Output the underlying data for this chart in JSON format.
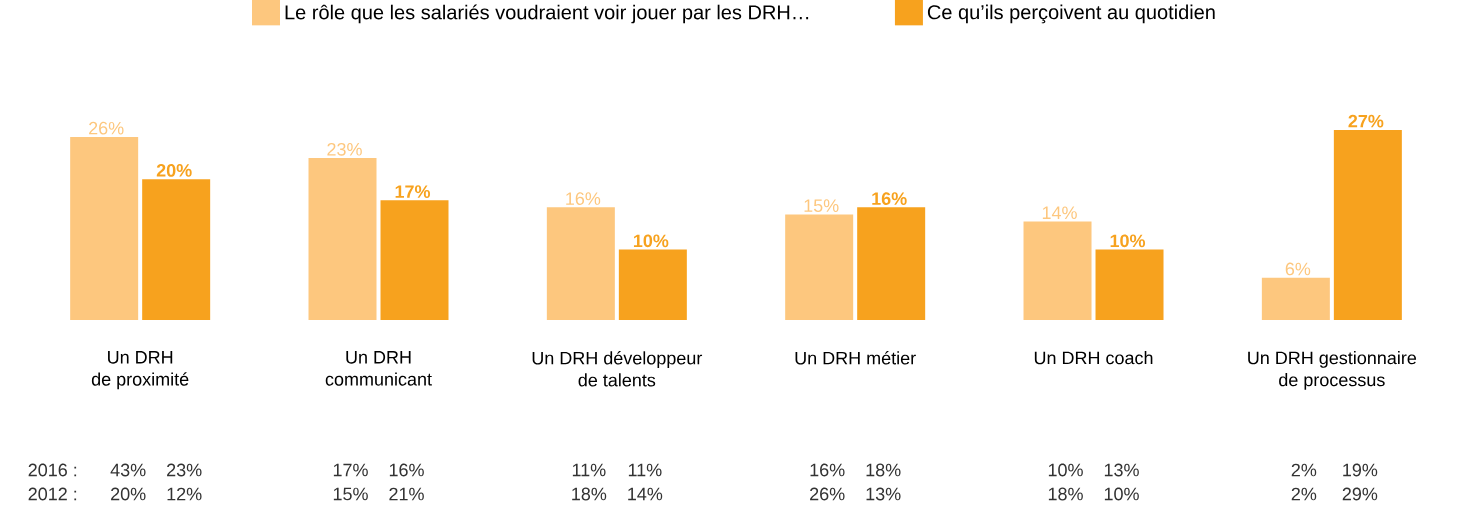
{
  "chart_data": {
    "type": "bar",
    "categories": [
      "Un DRH\nde proximité",
      "Un DRH\ncommunicant",
      "Un DRH développeur\nde talents",
      "Un DRH métier",
      "Un DRH coach",
      "Un DRH gestionnaire\nde processus"
    ],
    "series": [
      {
        "name": "Le rôle que les salariés voudraient voir jouer par les DRH…",
        "color": "#fdc77e",
        "values": [
          26,
          23,
          16,
          15,
          14,
          6
        ],
        "value_labels": [
          "26%",
          "23%",
          "16%",
          "15%",
          "14%",
          "6%"
        ]
      },
      {
        "name": "Ce qu’ils perçoivent au quotidien",
        "color": "#f7a21e",
        "values": [
          20,
          17,
          10,
          16,
          10,
          27
        ],
        "value_labels": [
          "20%",
          "17%",
          "10%",
          "16%",
          "10%",
          "27%"
        ]
      }
    ],
    "legend": "top",
    "tick_labels": "x",
    "annotations": [
      "2016 :",
      "2012 :",
      "43%",
      "23%",
      "20%",
      "12%",
      "17%",
      "16%",
      "15%",
      "21%",
      "11%",
      "11%",
      "18%",
      "14%",
      "16%",
      "18%",
      "26%",
      "13%",
      "10%",
      "13%",
      "18%",
      "10%",
      "2%",
      "19%",
      "2%",
      "29%"
    ]
  }
}
